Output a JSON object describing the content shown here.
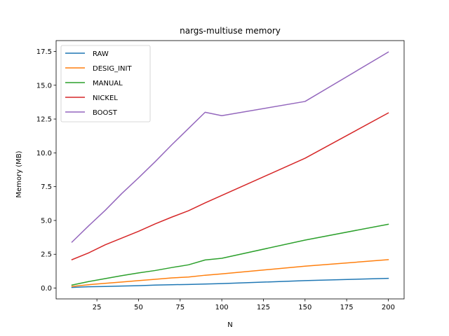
{
  "chart_data": {
    "type": "line",
    "title": "nargs-multiuse memory",
    "xlabel": "N",
    "ylabel": "Memory (MB)",
    "xlim": [
      0.5,
      209.5
    ],
    "ylim": [
      -0.8,
      18.3
    ],
    "xticks": [
      25,
      50,
      75,
      100,
      125,
      150,
      175,
      200
    ],
    "xtick_labels": [
      "25",
      "50",
      "75",
      "100",
      "125",
      "150",
      "175",
      "200"
    ],
    "yticks": [
      0,
      2.5,
      5,
      7.5,
      10,
      12.5,
      15,
      17.5
    ],
    "ytick_labels": [
      "0.0",
      "2.5",
      "5.0",
      "7.5",
      "10.0",
      "12.5",
      "15.0",
      "17.5"
    ],
    "grid": false,
    "legend_position": "top-left",
    "x": [
      10,
      20,
      30,
      40,
      50,
      60,
      70,
      80,
      90,
      100,
      150,
      200
    ],
    "series": [
      {
        "name": "RAW",
        "color": "#1f77b4",
        "values": [
          0.05,
          0.1,
          0.12,
          0.15,
          0.18,
          0.22,
          0.25,
          0.27,
          0.3,
          0.33,
          0.55,
          0.72
        ]
      },
      {
        "name": "DESIG_INIT",
        "color": "#ff7f0e",
        "values": [
          0.12,
          0.25,
          0.35,
          0.45,
          0.55,
          0.65,
          0.75,
          0.82,
          0.95,
          1.05,
          1.62,
          2.1
        ]
      },
      {
        "name": "MANUAL",
        "color": "#2ca02c",
        "values": [
          0.22,
          0.48,
          0.7,
          0.92,
          1.12,
          1.3,
          1.52,
          1.72,
          2.08,
          2.2,
          3.55,
          4.72
        ]
      },
      {
        "name": "NICKEL",
        "color": "#d62728",
        "values": [
          2.1,
          2.6,
          3.2,
          3.7,
          4.2,
          4.75,
          5.25,
          5.72,
          6.3,
          6.85,
          9.6,
          12.95
        ]
      },
      {
        "name": "BOOST",
        "color": "#9467bd",
        "values": [
          3.4,
          4.6,
          5.75,
          7.0,
          8.15,
          9.35,
          10.6,
          11.8,
          13.0,
          12.75,
          13.8,
          17.45
        ]
      }
    ]
  }
}
